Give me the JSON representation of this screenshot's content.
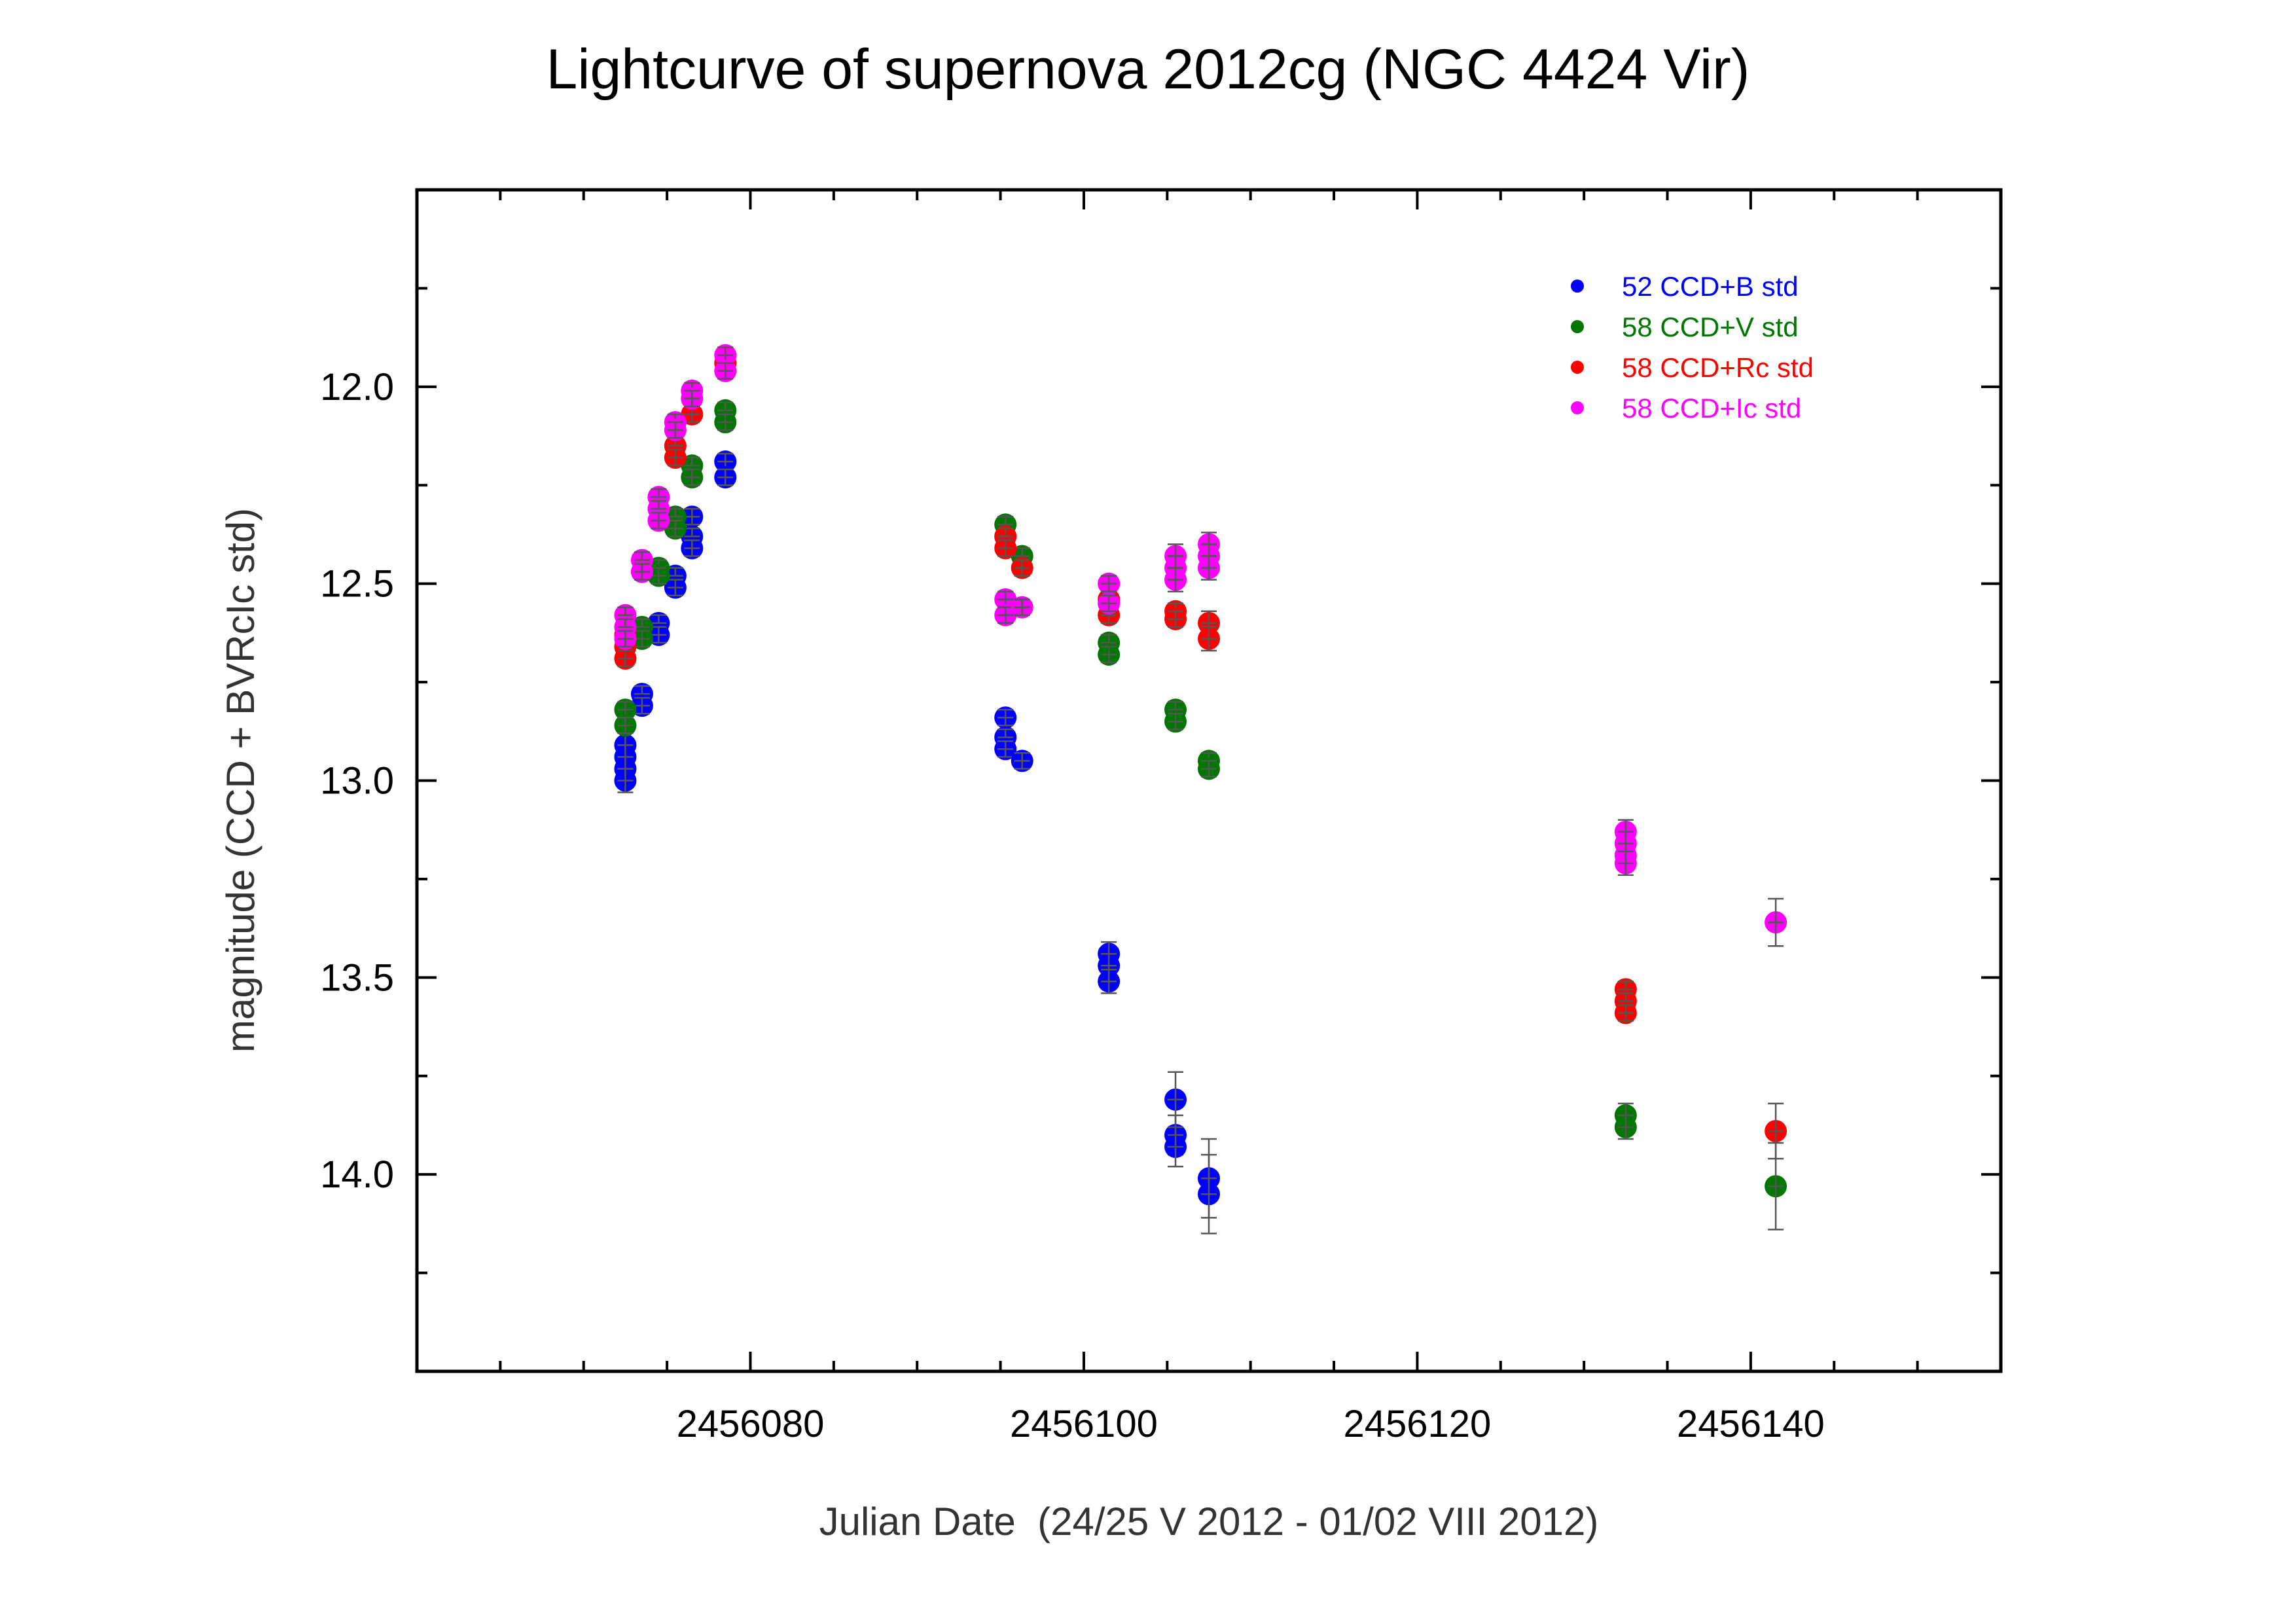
{
  "chart_data": {
    "type": "scatter",
    "title": "Lightcurve of supernova 2012cg (NGC 4424 Vir)",
    "xlabel": "Julian Date  (24/25 V 2012 - 01/02 VIII 2012)",
    "ylabel": "magnitude (CCD + BVRcIc std)",
    "xlim": [
      2456060,
      2456155
    ],
    "ylim": [
      14.5,
      11.5
    ],
    "y_inverted": true,
    "x_major_ticks": [
      2456080,
      2456100,
      2456120,
      2456140
    ],
    "x_tick_labels": [
      "2456080",
      "2456100",
      "2456120",
      "2456140"
    ],
    "x_minor_step": 5,
    "y_major_ticks": [
      12.0,
      12.5,
      13.0,
      13.5,
      14.0
    ],
    "y_tick_labels": [
      "12.0",
      "12.5",
      "13.0",
      "13.5",
      "14.0"
    ],
    "y_minor_step": 0.25,
    "grid": false,
    "legend_position": "top-right",
    "error_bar_color": "#555555",
    "series": [
      {
        "name": "52 CCD+B std",
        "color": "#0000ff",
        "points": [
          [
            2456072.5,
            12.91,
            0.03
          ],
          [
            2456072.5,
            12.94,
            0.03
          ],
          [
            2456072.5,
            12.97,
            0.03
          ],
          [
            2456072.5,
            13.0,
            0.03
          ],
          [
            2456073.5,
            12.78,
            0.02
          ],
          [
            2456073.5,
            12.81,
            0.02
          ],
          [
            2456074.5,
            12.6,
            0.02
          ],
          [
            2456074.5,
            12.63,
            0.02
          ],
          [
            2456075.5,
            12.48,
            0.02
          ],
          [
            2456075.5,
            12.51,
            0.02
          ],
          [
            2456076.5,
            12.33,
            0.02
          ],
          [
            2456076.5,
            12.38,
            0.02
          ],
          [
            2456076.5,
            12.41,
            0.02
          ],
          [
            2456078.5,
            12.19,
            0.02
          ],
          [
            2456078.5,
            12.23,
            0.02
          ],
          [
            2456095.3,
            12.84,
            0.02
          ],
          [
            2456095.3,
            12.89,
            0.02
          ],
          [
            2456095.3,
            12.92,
            0.02
          ],
          [
            2456096.3,
            12.95,
            0.02
          ],
          [
            2456101.5,
            13.44,
            0.03
          ],
          [
            2456101.5,
            13.47,
            0.03
          ],
          [
            2456101.5,
            13.51,
            0.03
          ],
          [
            2456105.5,
            13.81,
            0.07
          ],
          [
            2456105.5,
            13.9,
            0.05
          ],
          [
            2456105.5,
            13.93,
            0.05
          ],
          [
            2456107.5,
            14.01,
            0.1
          ],
          [
            2456107.5,
            14.05,
            0.1
          ]
        ]
      },
      {
        "name": "58 CCD+V std",
        "color": "#007700",
        "points": [
          [
            2456072.5,
            12.82,
            0.02
          ],
          [
            2456072.5,
            12.86,
            0.02
          ],
          [
            2456073.5,
            12.61,
            0.02
          ],
          [
            2456073.5,
            12.64,
            0.02
          ],
          [
            2456074.5,
            12.46,
            0.02
          ],
          [
            2456074.5,
            12.48,
            0.02
          ],
          [
            2456075.5,
            12.33,
            0.02
          ],
          [
            2456075.5,
            12.36,
            0.02
          ],
          [
            2456076.5,
            12.2,
            0.02
          ],
          [
            2456076.5,
            12.23,
            0.02
          ],
          [
            2456078.5,
            12.06,
            0.02
          ],
          [
            2456078.5,
            12.09,
            0.02
          ],
          [
            2456095.3,
            12.35,
            0.02
          ],
          [
            2456095.3,
            12.38,
            0.02
          ],
          [
            2456096.3,
            12.43,
            0.02
          ],
          [
            2456101.5,
            12.65,
            0.02
          ],
          [
            2456101.5,
            12.68,
            0.02
          ],
          [
            2456105.5,
            12.82,
            0.02
          ],
          [
            2456105.5,
            12.85,
            0.02
          ],
          [
            2456107.5,
            12.95,
            0.02
          ],
          [
            2456107.5,
            12.97,
            0.02
          ],
          [
            2456132.5,
            13.85,
            0.03
          ],
          [
            2456132.5,
            13.88,
            0.03
          ],
          [
            2456141.5,
            14.03,
            0.11
          ]
        ]
      },
      {
        "name": "58 CCD+Rc std",
        "color": "#ff0000",
        "points": [
          [
            2456072.5,
            12.63,
            0.02
          ],
          [
            2456072.5,
            12.66,
            0.02
          ],
          [
            2456072.5,
            12.69,
            0.02
          ],
          [
            2456075.5,
            12.15,
            0.02
          ],
          [
            2456075.5,
            12.18,
            0.02
          ],
          [
            2456076.5,
            12.07,
            0.02
          ],
          [
            2456078.5,
            11.94,
            0.02
          ],
          [
            2456095.3,
            12.38,
            0.02
          ],
          [
            2456095.3,
            12.41,
            0.02
          ],
          [
            2456096.3,
            12.46,
            0.02
          ],
          [
            2456101.5,
            12.54,
            0.02
          ],
          [
            2456101.5,
            12.58,
            0.02
          ],
          [
            2456105.5,
            12.57,
            0.02
          ],
          [
            2456105.5,
            12.59,
            0.02
          ],
          [
            2456107.5,
            12.6,
            0.03
          ],
          [
            2456107.5,
            12.64,
            0.03
          ],
          [
            2456132.5,
            13.53,
            0.02
          ],
          [
            2456132.5,
            13.56,
            0.02
          ],
          [
            2456132.5,
            13.59,
            0.02
          ],
          [
            2456141.5,
            13.89,
            0.07
          ]
        ]
      },
      {
        "name": "58 CCD+Ic std",
        "color": "#ff00ff",
        "points": [
          [
            2456072.5,
            12.58,
            0.02
          ],
          [
            2456072.5,
            12.61,
            0.02
          ],
          [
            2456072.5,
            12.64,
            0.02
          ],
          [
            2456073.5,
            12.44,
            0.02
          ],
          [
            2456073.5,
            12.47,
            0.02
          ],
          [
            2456074.5,
            12.28,
            0.02
          ],
          [
            2456074.5,
            12.31,
            0.02
          ],
          [
            2456074.5,
            12.34,
            0.02
          ],
          [
            2456075.5,
            12.09,
            0.02
          ],
          [
            2456075.5,
            12.11,
            0.02
          ],
          [
            2456076.5,
            12.01,
            0.02
          ],
          [
            2456076.5,
            12.03,
            0.02
          ],
          [
            2456078.5,
            11.92,
            0.02
          ],
          [
            2456078.5,
            11.96,
            0.02
          ],
          [
            2456095.3,
            12.54,
            0.02
          ],
          [
            2456095.3,
            12.58,
            0.02
          ],
          [
            2456096.3,
            12.56,
            0.02
          ],
          [
            2456101.5,
            12.5,
            0.02
          ],
          [
            2456101.5,
            12.55,
            0.02
          ],
          [
            2456105.5,
            12.43,
            0.03
          ],
          [
            2456105.5,
            12.46,
            0.03
          ],
          [
            2456105.5,
            12.49,
            0.03
          ],
          [
            2456107.5,
            12.4,
            0.03
          ],
          [
            2456107.5,
            12.43,
            0.03
          ],
          [
            2456107.5,
            12.46,
            0.03
          ],
          [
            2456132.5,
            13.13,
            0.03
          ],
          [
            2456132.5,
            13.16,
            0.03
          ],
          [
            2456132.5,
            13.19,
            0.03
          ],
          [
            2456132.5,
            13.21,
            0.03
          ],
          [
            2456141.5,
            13.36,
            0.06
          ]
        ]
      }
    ]
  }
}
